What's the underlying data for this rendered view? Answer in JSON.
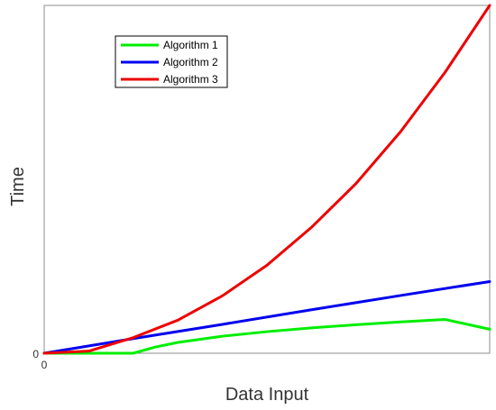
{
  "chart_data": {
    "type": "line",
    "title": "",
    "xlabel": "Data Input",
    "ylabel": "Time",
    "xlim": [
      0,
      100
    ],
    "ylim": [
      0,
      100
    ],
    "x_tick_labels": [
      "0"
    ],
    "y_tick_labels": [
      "0"
    ],
    "grid": false,
    "legend_position": "top-left",
    "series": [
      {
        "name": "Algorithm 1",
        "color": "#00ee00",
        "x": [
          0,
          20,
          25,
          30,
          40,
          50,
          60,
          70,
          80,
          90,
          100
        ],
        "y": [
          0,
          0,
          1.8,
          3.1,
          4.9,
          6.2,
          7.3,
          8.2,
          9.0,
          9.7,
          6.9
        ]
      },
      {
        "name": "Algorithm 2",
        "color": "#0000ee",
        "x": [
          0,
          20,
          40,
          60,
          80,
          100
        ],
        "y": [
          0,
          4.2,
          8.3,
          12.5,
          16.6,
          20.6
        ]
      },
      {
        "name": "Algorithm 3",
        "color": "#ee0000",
        "x": [
          0,
          10,
          20,
          30,
          40,
          50,
          60,
          70,
          80,
          90,
          100
        ],
        "y": [
          0,
          0.6,
          4.5,
          9.5,
          16.5,
          25.3,
          36.2,
          48.8,
          63.7,
          80.8,
          100
        ]
      }
    ]
  }
}
